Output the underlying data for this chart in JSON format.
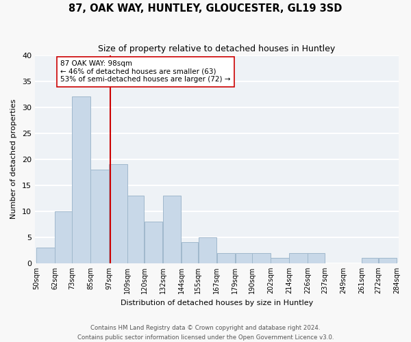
{
  "title": "87, OAK WAY, HUNTLEY, GLOUCESTER, GL19 3SD",
  "subtitle": "Size of property relative to detached houses in Huntley",
  "xlabel": "Distribution of detached houses by size in Huntley",
  "ylabel": "Number of detached properties",
  "bar_color": "#c8d8e8",
  "bar_edge_color": "#a0b8cc",
  "background_color": "#eef2f6",
  "grid_color": "#ffffff",
  "bins": [
    50,
    62,
    73,
    85,
    97,
    109,
    120,
    132,
    144,
    155,
    167,
    179,
    190,
    202,
    214,
    226,
    237,
    249,
    261,
    272,
    284
  ],
  "counts": [
    3,
    10,
    32,
    18,
    19,
    13,
    8,
    13,
    4,
    5,
    2,
    2,
    2,
    1,
    2,
    2,
    0,
    0,
    1,
    1
  ],
  "reference_line_x": 98,
  "reference_line_color": "#cc0000",
  "annotation_title": "87 OAK WAY: 98sqm",
  "annotation_line1": "← 46% of detached houses are smaller (63)",
  "annotation_line2": "53% of semi-detached houses are larger (72) →",
  "ylim": [
    0,
    40
  ],
  "yticks": [
    0,
    5,
    10,
    15,
    20,
    25,
    30,
    35,
    40
  ],
  "footer_line1": "Contains HM Land Registry data © Crown copyright and database right 2024.",
  "footer_line2": "Contains public sector information licensed under the Open Government Licence v3.0.",
  "tick_labels": [
    "50sqm",
    "62sqm",
    "73sqm",
    "85sqm",
    "97sqm",
    "109sqm",
    "120sqm",
    "132sqm",
    "144sqm",
    "155sqm",
    "167sqm",
    "179sqm",
    "190sqm",
    "202sqm",
    "214sqm",
    "226sqm",
    "237sqm",
    "249sqm",
    "261sqm",
    "272sqm",
    "284sqm"
  ]
}
